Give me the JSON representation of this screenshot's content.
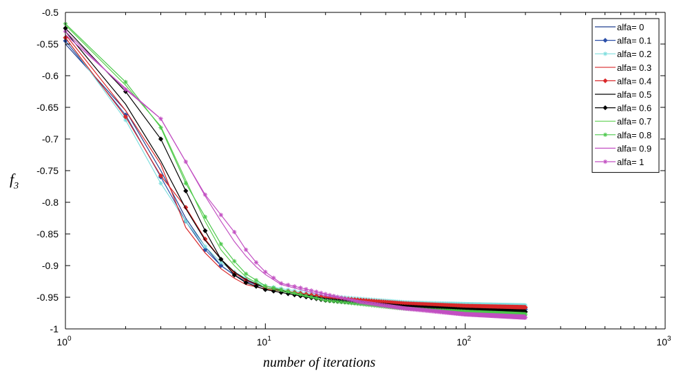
{
  "chart_data": {
    "type": "line",
    "xscale": "log",
    "xlim": [
      1,
      1000
    ],
    "ylim": [
      -1,
      -0.5
    ],
    "xlabel": "number of iterations",
    "ylabel_main": "f",
    "ylabel_sub": "3",
    "legend_position": "top-right",
    "grid": false,
    "xticks": [
      {
        "value": 1,
        "base": "10",
        "exp": "0"
      },
      {
        "value": 10,
        "base": "10",
        "exp": "1"
      },
      {
        "value": 100,
        "base": "10",
        "exp": "2"
      },
      {
        "value": 1000,
        "base": "10",
        "exp": "3"
      }
    ],
    "yticks": [
      -0.5,
      -0.55,
      -0.6,
      -0.65,
      -0.7,
      -0.75,
      -0.8,
      -0.85,
      -0.9,
      -0.95,
      -1
    ],
    "ytick_labels": [
      "-0.5",
      "-0.55",
      "-0.6",
      "-0.65",
      "-0.7",
      "-0.75",
      "-0.8",
      "-0.85",
      "-0.9",
      "-0.95",
      "-1"
    ],
    "series": [
      {
        "name": "alfa= 0",
        "color": "#1f3f8f",
        "marker": "none",
        "points": [
          [
            1,
            -0.55
          ],
          [
            2,
            -0.655
          ],
          [
            3,
            -0.75
          ],
          [
            4,
            -0.825
          ],
          [
            5,
            -0.87
          ],
          [
            6,
            -0.9
          ],
          [
            7,
            -0.915
          ],
          [
            8,
            -0.925
          ],
          [
            10,
            -0.935
          ],
          [
            20,
            -0.952
          ],
          [
            50,
            -0.962
          ],
          [
            100,
            -0.966
          ],
          [
            200,
            -0.968
          ]
        ]
      },
      {
        "name": "alfa= 0.1",
        "color": "#2b4fa8",
        "marker": "diamond",
        "points": [
          [
            1,
            -0.545
          ],
          [
            2,
            -0.662
          ],
          [
            3,
            -0.76
          ],
          [
            4,
            -0.83
          ],
          [
            5,
            -0.875
          ],
          [
            6,
            -0.9
          ],
          [
            7,
            -0.915
          ],
          [
            8,
            -0.925
          ],
          [
            10,
            -0.935
          ],
          [
            20,
            -0.952
          ],
          [
            50,
            -0.963
          ],
          [
            100,
            -0.967
          ],
          [
            200,
            -0.969
          ]
        ]
      },
      {
        "name": "alfa= 0.2",
        "color": "#7fdede",
        "marker": "star",
        "points": [
          [
            1,
            -0.54
          ],
          [
            2,
            -0.67
          ],
          [
            3,
            -0.77
          ],
          [
            4,
            -0.83
          ],
          [
            5,
            -0.87
          ],
          [
            6,
            -0.895
          ],
          [
            7,
            -0.91
          ],
          [
            8,
            -0.92
          ],
          [
            10,
            -0.932
          ],
          [
            20,
            -0.948
          ],
          [
            50,
            -0.958
          ],
          [
            100,
            -0.961
          ],
          [
            200,
            -0.963
          ]
        ]
      },
      {
        "name": "alfa= 0.3",
        "color": "#d9282a",
        "marker": "none",
        "points": [
          [
            1,
            -0.535
          ],
          [
            2,
            -0.655
          ],
          [
            3,
            -0.74
          ],
          [
            4,
            -0.84
          ],
          [
            5,
            -0.88
          ],
          [
            6,
            -0.905
          ],
          [
            7,
            -0.92
          ],
          [
            8,
            -0.93
          ],
          [
            10,
            -0.937
          ],
          [
            20,
            -0.95
          ],
          [
            50,
            -0.958
          ],
          [
            100,
            -0.962
          ],
          [
            200,
            -0.964
          ]
        ]
      },
      {
        "name": "alfa= 0.4",
        "color": "#d9282a",
        "marker": "diamond",
        "points": [
          [
            1,
            -0.54
          ],
          [
            2,
            -0.665
          ],
          [
            3,
            -0.758
          ],
          [
            4,
            -0.808
          ],
          [
            5,
            -0.858
          ],
          [
            6,
            -0.89
          ],
          [
            7,
            -0.912
          ],
          [
            8,
            -0.923
          ],
          [
            10,
            -0.935
          ],
          [
            20,
            -0.95
          ],
          [
            50,
            -0.96
          ],
          [
            100,
            -0.964
          ],
          [
            200,
            -0.966
          ]
        ]
      },
      {
        "name": "alfa= 0.5",
        "color": "#000000",
        "marker": "none",
        "points": [
          [
            1,
            -0.53
          ],
          [
            2,
            -0.645
          ],
          [
            3,
            -0.735
          ],
          [
            4,
            -0.81
          ],
          [
            5,
            -0.86
          ],
          [
            6,
            -0.89
          ],
          [
            7,
            -0.91
          ],
          [
            8,
            -0.922
          ],
          [
            10,
            -0.935
          ],
          [
            20,
            -0.952
          ],
          [
            50,
            -0.963
          ],
          [
            100,
            -0.968
          ],
          [
            200,
            -0.97
          ]
        ]
      },
      {
        "name": "alfa= 0.6",
        "color": "#000000",
        "marker": "diamond",
        "points": [
          [
            1,
            -0.525
          ],
          [
            2,
            -0.625
          ],
          [
            3,
            -0.7
          ],
          [
            4,
            -0.782
          ],
          [
            5,
            -0.845
          ],
          [
            6,
            -0.89
          ],
          [
            7,
            -0.915
          ],
          [
            8,
            -0.927
          ],
          [
            10,
            -0.938
          ],
          [
            20,
            -0.955
          ],
          [
            50,
            -0.965
          ],
          [
            100,
            -0.97
          ],
          [
            200,
            -0.973
          ]
        ]
      },
      {
        "name": "alfa= 0.7",
        "color": "#5ccf4f",
        "marker": "none",
        "points": [
          [
            1,
            -0.52
          ],
          [
            2,
            -0.615
          ],
          [
            3,
            -0.68
          ],
          [
            4,
            -0.765
          ],
          [
            5,
            -0.83
          ],
          [
            6,
            -0.875
          ],
          [
            7,
            -0.9
          ],
          [
            8,
            -0.918
          ],
          [
            10,
            -0.935
          ],
          [
            20,
            -0.955
          ],
          [
            50,
            -0.968
          ],
          [
            100,
            -0.973
          ],
          [
            200,
            -0.976
          ]
        ]
      },
      {
        "name": "alfa= 0.8",
        "color": "#4cc84c",
        "marker": "star",
        "points": [
          [
            1,
            -0.518
          ],
          [
            2,
            -0.61
          ],
          [
            3,
            -0.682
          ],
          [
            4,
            -0.77
          ],
          [
            5,
            -0.823
          ],
          [
            6,
            -0.866
          ],
          [
            7,
            -0.893
          ],
          [
            8,
            -0.913
          ],
          [
            10,
            -0.932
          ],
          [
            20,
            -0.955
          ],
          [
            50,
            -0.968
          ],
          [
            100,
            -0.973
          ],
          [
            200,
            -0.977
          ]
        ]
      },
      {
        "name": "alfa= 0.9",
        "color": "#c24fc2",
        "marker": "none",
        "points": [
          [
            1,
            -0.535
          ],
          [
            2,
            -0.62
          ],
          [
            3,
            -0.668
          ],
          [
            4,
            -0.736
          ],
          [
            5,
            -0.79
          ],
          [
            6,
            -0.83
          ],
          [
            7,
            -0.862
          ],
          [
            8,
            -0.885
          ],
          [
            9,
            -0.902
          ],
          [
            10,
            -0.914
          ],
          [
            12,
            -0.93
          ],
          [
            20,
            -0.948
          ],
          [
            50,
            -0.965
          ],
          [
            100,
            -0.974
          ],
          [
            200,
            -0.978
          ]
        ]
      },
      {
        "name": "alfa= 1",
        "color": "#c24fc2",
        "marker": "star",
        "points": [
          [
            1,
            -0.53
          ],
          [
            2,
            -0.622
          ],
          [
            3,
            -0.668
          ],
          [
            4,
            -0.736
          ],
          [
            5,
            -0.788
          ],
          [
            6,
            -0.82
          ],
          [
            7,
            -0.847
          ],
          [
            8,
            -0.875
          ],
          [
            9,
            -0.895
          ],
          [
            10,
            -0.91
          ],
          [
            12,
            -0.928
          ],
          [
            15,
            -0.935
          ],
          [
            20,
            -0.945
          ],
          [
            30,
            -0.958
          ],
          [
            50,
            -0.968
          ],
          [
            100,
            -0.977
          ],
          [
            200,
            -0.982
          ]
        ]
      }
    ]
  }
}
